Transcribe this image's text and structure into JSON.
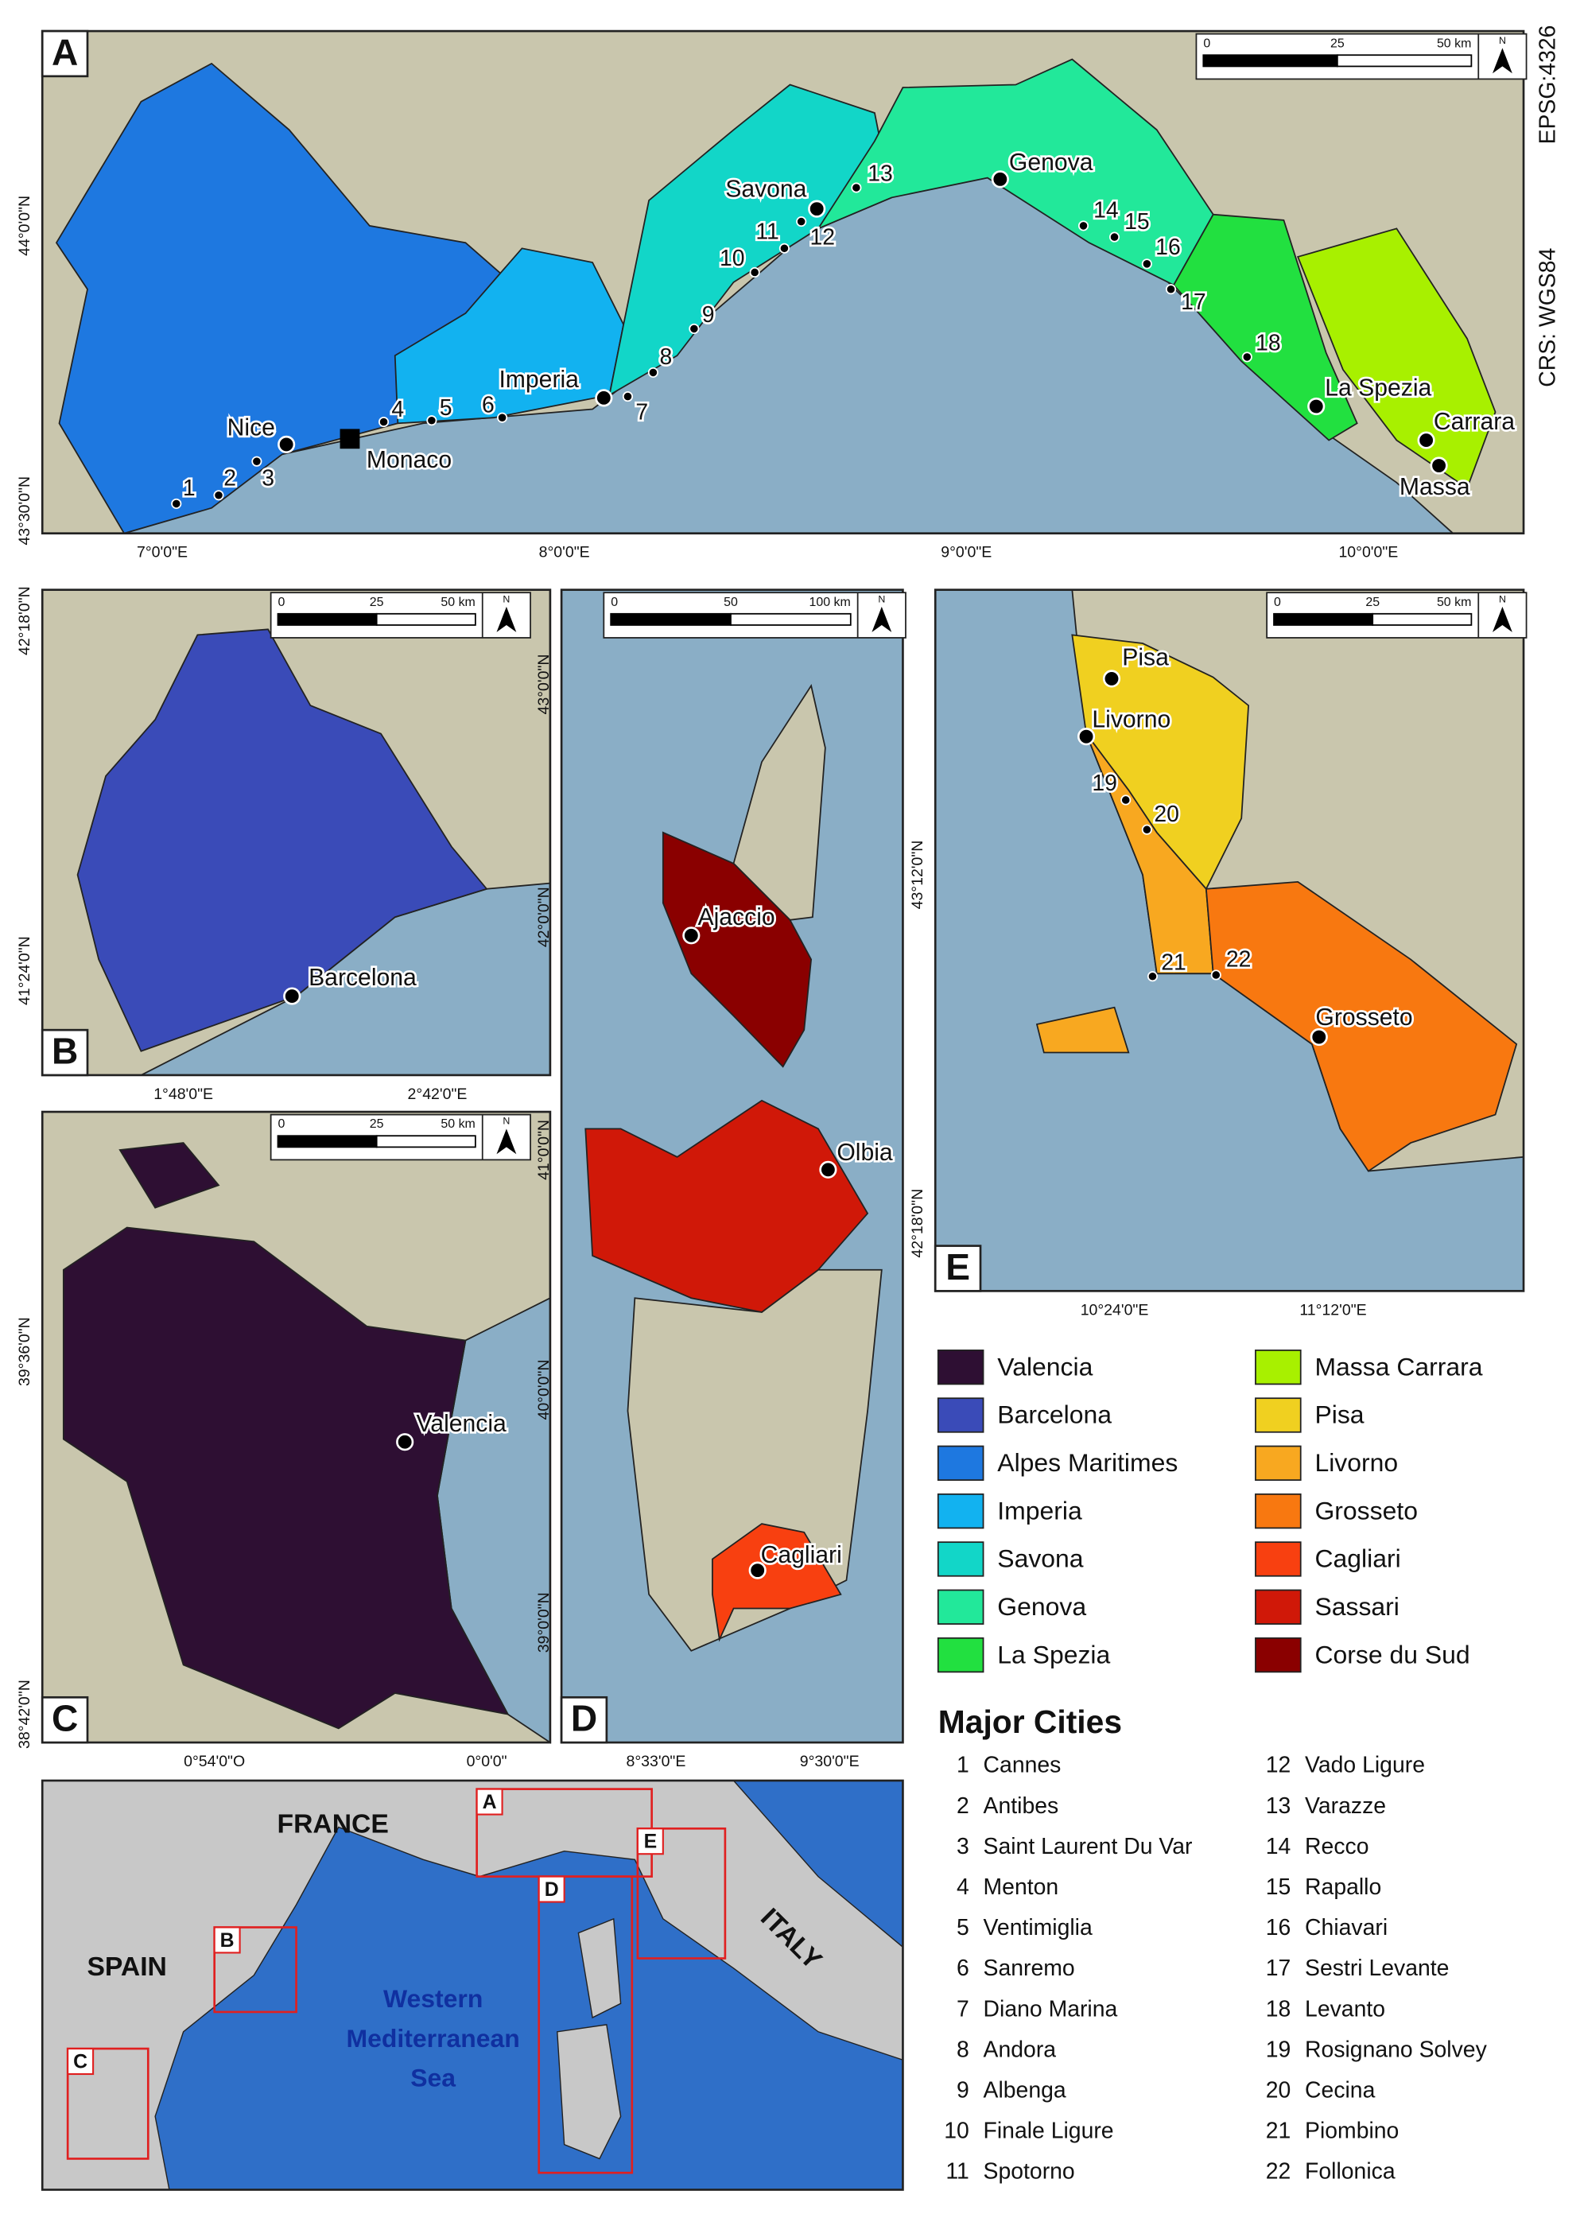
{
  "crs": [
    "EPSG:4326",
    "CRS: WGS84"
  ],
  "panels": [
    {
      "label": "A",
      "scale": [
        "0",
        "25",
        "50 km"
      ],
      "north": "N",
      "lon": [
        "7°0'0\"E",
        "8°0'0\"E",
        "9°0'0\"E",
        "10°0'0\"E"
      ],
      "lat": [
        "43°30'0\"N",
        "44°0'0\"N"
      ],
      "cities": [
        "Savona",
        "Genova",
        "Imperia",
        "Nice",
        "Monaco",
        "La Spezia",
        "Carrara",
        "Massa"
      ],
      "numbered": [
        "1",
        "2",
        "3",
        "4",
        "5",
        "6",
        "7",
        "8",
        "9",
        "10",
        "11",
        "12",
        "13",
        "14",
        "15",
        "16",
        "17",
        "18"
      ]
    },
    {
      "label": "B",
      "scale": [
        "0",
        "25",
        "50 km"
      ],
      "north": "N",
      "lon": [
        "1°48'0\"E",
        "2°42'0\"E"
      ],
      "lat": [
        "42°18'0\"N",
        "41°24'0\"N"
      ],
      "cities": [
        "Barcelona"
      ],
      "numbered": []
    },
    {
      "label": "C",
      "scale": [
        "0",
        "25",
        "50 km"
      ],
      "north": "N",
      "lon": [
        "0°54'0\"O",
        "0°0'0\""
      ],
      "lat": [
        "39°36'0\"N",
        "38°42'0\"N"
      ],
      "cities": [
        "Valencia"
      ],
      "numbered": []
    },
    {
      "label": "D",
      "scale": [
        "0",
        "50",
        "100 km"
      ],
      "north": "N",
      "lon": [
        "8°33'0\"E",
        "9°30'0\"E"
      ],
      "lat": [
        "43°0'0\"N",
        "42°0'0\"N",
        "41°0'0\"N",
        "40°0'0\"N",
        "39°0'0\"N"
      ],
      "cities": [
        "Ajaccio",
        "Olbia",
        "Cagliari"
      ],
      "numbered": []
    },
    {
      "label": "E",
      "scale": [
        "0",
        "25",
        "50 km"
      ],
      "north": "N",
      "lon": [
        "10°24'0\"E",
        "11°12'0\"E"
      ],
      "lat": [
        "43°12'0\"N",
        "42°18'0\"N"
      ],
      "cities": [
        "Pisa",
        "Livorno",
        "Grosseto"
      ],
      "numbered": [
        "19",
        "20",
        "21",
        "22"
      ]
    }
  ],
  "legend": [
    {
      "name": "Valencia",
      "color": "#2e0f33"
    },
    {
      "name": "Barcelona",
      "color": "#3a4bb8"
    },
    {
      "name": "Alpes Maritimes",
      "color": "#1e78e0"
    },
    {
      "name": "Imperia",
      "color": "#12b2f0"
    },
    {
      "name": "Savona",
      "color": "#12d6c8"
    },
    {
      "name": "Genova",
      "color": "#22e89a"
    },
    {
      "name": "La Spezia",
      "color": "#22e040"
    },
    {
      "name": "Massa Carrara",
      "color": "#a8f000"
    },
    {
      "name": "Pisa",
      "color": "#f0d020"
    },
    {
      "name": "Livorno",
      "color": "#f8a820"
    },
    {
      "name": "Grosseto",
      "color": "#f87810"
    },
    {
      "name": "Cagliari",
      "color": "#f84010"
    },
    {
      "name": "Sassari",
      "color": "#d01808"
    },
    {
      "name": "Corse du Sud",
      "color": "#8a0000"
    }
  ],
  "major_cities": {
    "title": "Major Cities",
    "items": [
      {
        "number": "1",
        "name": "Cannes"
      },
      {
        "number": "2",
        "name": "Antibes"
      },
      {
        "number": "3",
        "name": "Saint Laurent Du Var"
      },
      {
        "number": "4",
        "name": "Menton"
      },
      {
        "number": "5",
        "name": "Ventimiglia"
      },
      {
        "number": "6",
        "name": "Sanremo"
      },
      {
        "number": "7",
        "name": "Diano Marina"
      },
      {
        "number": "8",
        "name": "Andora"
      },
      {
        "number": "9",
        "name": "Albenga"
      },
      {
        "number": "10",
        "name": "Finale Ligure"
      },
      {
        "number": "11",
        "name": "Spotorno"
      },
      {
        "number": "12",
        "name": "Vado Ligure"
      },
      {
        "number": "13",
        "name": "Varazze"
      },
      {
        "number": "14",
        "name": "Recco"
      },
      {
        "number": "15",
        "name": "Rapallo"
      },
      {
        "number": "16",
        "name": "Chiavari"
      },
      {
        "number": "17",
        "name": "Sestri Levante"
      },
      {
        "number": "18",
        "name": "Levanto"
      },
      {
        "number": "19",
        "name": "Rosignano Solvey"
      },
      {
        "number": "20",
        "name": "Cecina"
      },
      {
        "number": "21",
        "name": "Piombino"
      },
      {
        "number": "22",
        "name": "Follonica"
      }
    ]
  },
  "overview": {
    "countries": [
      "FRANCE",
      "SPAIN",
      "ITALY"
    ],
    "sea": [
      "Western",
      "Mediterranean",
      "Sea"
    ],
    "boxes": [
      "A",
      "B",
      "C",
      "D",
      "E"
    ]
  }
}
